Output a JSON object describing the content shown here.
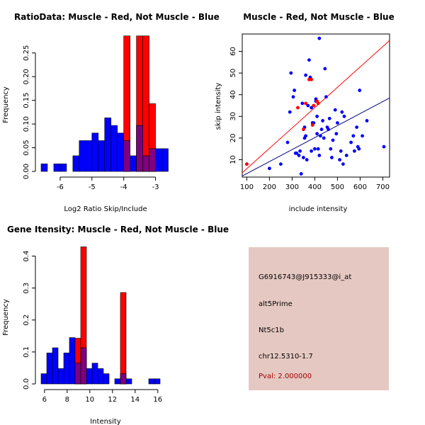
{
  "chart_data": [
    {
      "id": "ratio-hist",
      "type": "histogram",
      "title": "RatioData: Muscle - Red, Not Muscle - Blue",
      "xlabel": "Log2 Ratio Skip/Include",
      "ylabel": "Frequency",
      "xlim": [
        -6.6,
        -2.5
      ],
      "ylim": [
        0,
        0.29
      ],
      "xticks": [
        -6,
        -5,
        -4,
        -3
      ],
      "yticks": [
        0.0,
        0.05,
        0.1,
        0.15,
        0.2,
        0.25
      ],
      "bin_width": 0.2,
      "series": [
        {
          "name": "Not Muscle",
          "color": "#0000ff",
          "bins": [
            {
              "x0": -6.6,
              "v": 0.016
            },
            {
              "x0": -6.2,
              "v": 0.016
            },
            {
              "x0": -6.0,
              "v": 0.016
            },
            {
              "x0": -5.6,
              "v": 0.033
            },
            {
              "x0": -5.4,
              "v": 0.065
            },
            {
              "x0": -5.2,
              "v": 0.065
            },
            {
              "x0": -5.0,
              "v": 0.081
            },
            {
              "x0": -4.8,
              "v": 0.065
            },
            {
              "x0": -4.6,
              "v": 0.113
            },
            {
              "x0": -4.4,
              "v": 0.097
            },
            {
              "x0": -4.2,
              "v": 0.081
            },
            {
              "x0": -4.0,
              "v": 0.065
            },
            {
              "x0": -3.8,
              "v": 0.033
            },
            {
              "x0": -3.6,
              "v": 0.097
            },
            {
              "x0": -3.4,
              "v": 0.033
            },
            {
              "x0": -3.2,
              "v": 0.048
            },
            {
              "x0": -3.0,
              "v": 0.048
            },
            {
              "x0": -2.8,
              "v": 0.048
            }
          ]
        },
        {
          "name": "Muscle",
          "color": "#ff0000",
          "bins": [
            {
              "x0": -4.0,
              "v": 0.286
            },
            {
              "x0": -3.6,
              "v": 0.286
            },
            {
              "x0": -3.4,
              "v": 0.286
            },
            {
              "x0": -3.2,
              "v": 0.143
            }
          ]
        }
      ]
    },
    {
      "id": "intensity-scatter",
      "type": "scatter",
      "title": "Muscle - Red, Not Muscle - Blue",
      "xlabel": "include intensity",
      "ylabel": "skip intensity",
      "xlim": [
        80,
        730
      ],
      "ylim": [
        2,
        68
      ],
      "xticks": [
        100,
        200,
        300,
        400,
        500,
        600,
        700
      ],
      "yticks": [
        10,
        20,
        30,
        40,
        50,
        60
      ],
      "series": [
        {
          "name": "Not Muscle",
          "color": "#0000ff",
          "points": [
            [
              100,
              8
            ],
            [
              200,
              6
            ],
            [
              250,
              8
            ],
            [
              280,
              18
            ],
            [
              290,
              32
            ],
            [
              295,
              50
            ],
            [
              305,
              39
            ],
            [
              310,
              42
            ],
            [
              315,
              13
            ],
            [
              320,
              13
            ],
            [
              330,
              12
            ],
            [
              335,
              14
            ],
            [
              340,
              3.5
            ],
            [
              345,
              36
            ],
            [
              350,
              11
            ],
            [
              355,
              20
            ],
            [
              355,
              25
            ],
            [
              360,
              49
            ],
            [
              360,
              21
            ],
            [
              365,
              10
            ],
            [
              370,
              35
            ],
            [
              375,
              56
            ],
            [
              380,
              48
            ],
            [
              385,
              14
            ],
            [
              385,
              34
            ],
            [
              390,
              27
            ],
            [
              395,
              27
            ],
            [
              400,
              15
            ],
            [
              405,
              37
            ],
            [
              405,
              38
            ],
            [
              410,
              22
            ],
            [
              410,
              30
            ],
            [
              415,
              15
            ],
            [
              420,
              12
            ],
            [
              420,
              66
            ],
            [
              425,
              21
            ],
            [
              430,
              24
            ],
            [
              435,
              28
            ],
            [
              440,
              20
            ],
            [
              445,
              52
            ],
            [
              450,
              39
            ],
            [
              455,
              25
            ],
            [
              460,
              24
            ],
            [
              465,
              29
            ],
            [
              470,
              15
            ],
            [
              475,
              11
            ],
            [
              480,
              19
            ],
            [
              490,
              33
            ],
            [
              495,
              22
            ],
            [
              500,
              27
            ],
            [
              510,
              10
            ],
            [
              515,
              14
            ],
            [
              520,
              32
            ],
            [
              525,
              8
            ],
            [
              530,
              30
            ],
            [
              540,
              12
            ],
            [
              560,
              18
            ],
            [
              570,
              21
            ],
            [
              575,
              14
            ],
            [
              585,
              25
            ],
            [
              590,
              16
            ],
            [
              595,
              15
            ],
            [
              598,
              42
            ],
            [
              610,
              21
            ],
            [
              630,
              28
            ],
            [
              705,
              16
            ]
          ]
        },
        {
          "name": "Muscle",
          "color": "#ff0000",
          "points": [
            [
              100,
              8
            ],
            [
              325,
              34
            ],
            [
              350,
              24
            ],
            [
              360,
              36
            ],
            [
              375,
              47
            ],
            [
              385,
              47
            ],
            [
              390,
              26
            ],
            [
              395,
              35
            ],
            [
              410,
              37
            ],
            [
              415,
              36
            ]
          ]
        }
      ],
      "fits": [
        {
          "series": "Muscle",
          "color": "#ff0000",
          "x": [
            80,
            730
          ],
          "y": [
            4,
            65
          ]
        },
        {
          "series": "Not Muscle",
          "color": "#000080",
          "x": [
            80,
            730
          ],
          "y": [
            2.5,
            38.5
          ]
        }
      ]
    },
    {
      "id": "gene-hist",
      "type": "histogram",
      "title": "Gene Itensity: Muscle - Red, Not Muscle - Blue",
      "xlabel": "Intensity",
      "ylabel": "Frequency",
      "xlim": [
        5.7,
        17.2
      ],
      "ylim": [
        0,
        0.43
      ],
      "xticks": [
        6,
        8,
        10,
        12,
        14,
        16
      ],
      "yticks": [
        0.0,
        0.1,
        0.2,
        0.3,
        0.4
      ],
      "bin_width": 0.5,
      "series": [
        {
          "name": "Not Muscle",
          "color": "#0000ff",
          "bins": [
            {
              "x0": 5.7,
              "v": 0.032
            },
            {
              "x0": 6.2,
              "v": 0.097
            },
            {
              "x0": 6.7,
              "v": 0.113
            },
            {
              "x0": 7.2,
              "v": 0.048
            },
            {
              "x0": 7.7,
              "v": 0.097
            },
            {
              "x0": 8.2,
              "v": 0.145
            },
            {
              "x0": 8.7,
              "v": 0.065
            },
            {
              "x0": 9.2,
              "v": 0.113
            },
            {
              "x0": 9.7,
              "v": 0.048
            },
            {
              "x0": 10.2,
              "v": 0.065
            },
            {
              "x0": 10.7,
              "v": 0.048
            },
            {
              "x0": 11.2,
              "v": 0.032
            },
            {
              "x0": 12.2,
              "v": 0.016
            },
            {
              "x0": 12.7,
              "v": 0.032
            },
            {
              "x0": 13.2,
              "v": 0.016
            },
            {
              "x0": 15.2,
              "v": 0.016
            },
            {
              "x0": 15.7,
              "v": 0.016
            }
          ]
        },
        {
          "name": "Muscle",
          "color": "#ff0000",
          "bins": [
            {
              "x0": 8.7,
              "v": 0.143
            },
            {
              "x0": 9.2,
              "v": 0.429
            },
            {
              "x0": 12.7,
              "v": 0.286
            }
          ]
        }
      ]
    }
  ],
  "info": {
    "probe": "G6916743@J915333@i_at",
    "event": "alt5Prime",
    "gene": "Nt5c1b",
    "location": "chr12.5310-1.7",
    "pval": "Pval: 2.000000",
    "pval_color": "#a00000",
    "background": "#e6c8c2"
  }
}
